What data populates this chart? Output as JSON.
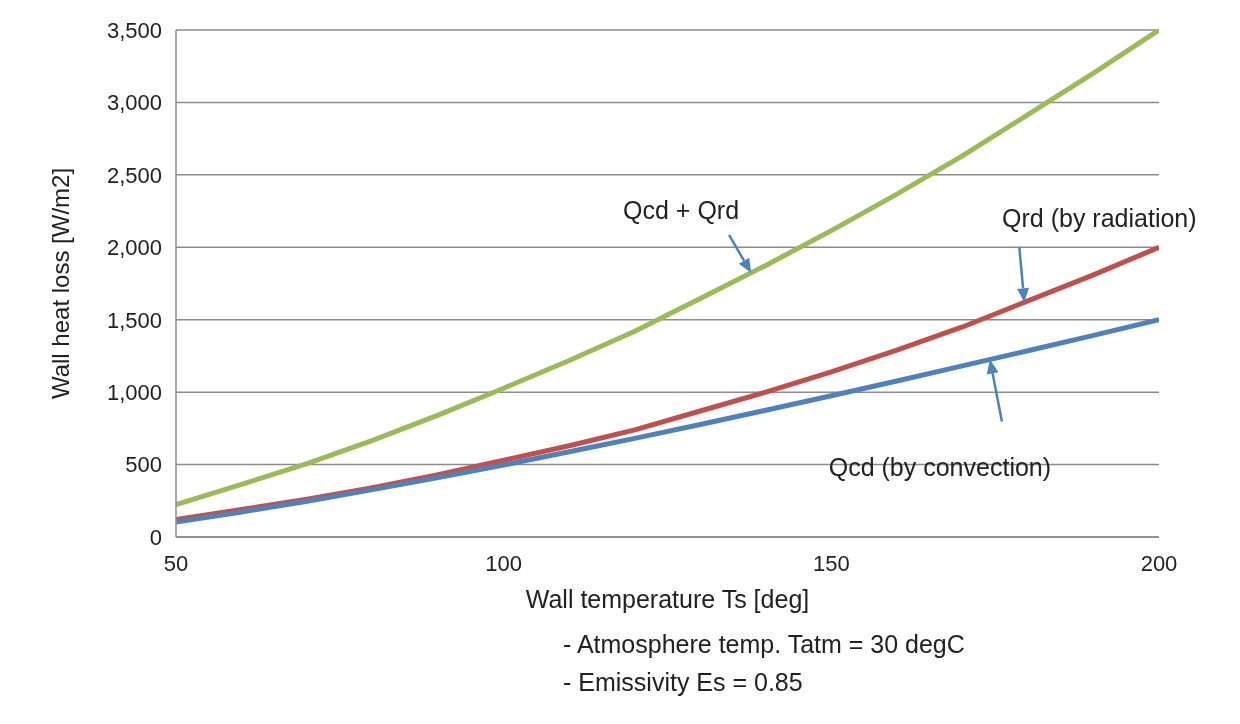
{
  "chart_data": {
    "type": "line",
    "xlabel": "Wall temperature Ts [deg]",
    "ylabel": "Wall heat loss [W/m2]",
    "x": [
      50,
      60,
      70,
      80,
      90,
      100,
      110,
      120,
      130,
      140,
      150,
      160,
      170,
      180,
      190,
      200
    ],
    "series": [
      {
        "name": "Qcd + Qrd",
        "color": "#9bbb59",
        "values": [
          224,
          363,
          507,
          667,
          841,
          1027,
          1218,
          1421,
          1647,
          1875,
          2115,
          2367,
          2631,
          2916,
          3202,
          3500
        ]
      },
      {
        "name": "Qrd (by radiation)",
        "color": "#c0504d",
        "values": [
          120,
          190,
          260,
          340,
          430,
          530,
          630,
          740,
          870,
          1000,
          1140,
          1290,
          1450,
          1630,
          1810,
          2000
        ]
      },
      {
        "name": "Qcd (by convection)",
        "color": "#4f81bd",
        "values": [
          104,
          173,
          247,
          327,
          411,
          497,
          588,
          681,
          777,
          875,
          975,
          1077,
          1181,
          1286,
          1392,
          1500
        ]
      }
    ],
    "xlim": [
      50,
      200
    ],
    "xticks": [
      50,
      100,
      150,
      200
    ],
    "ylim": [
      0,
      3500
    ],
    "yticks": [
      0,
      500,
      {
        "value": 1000,
        "label": "1,000"
      },
      {
        "value": 1500,
        "label": "1,500"
      },
      {
        "value": 2000,
        "label": "2,000"
      },
      {
        "value": 2500,
        "label": "2,500"
      },
      {
        "value": 3000,
        "label": "3,000"
      },
      {
        "value": 3500,
        "label": "3,500"
      }
    ],
    "grid": "y",
    "legend": false,
    "marker": "none",
    "line_style": "solid",
    "annotations": [
      "- Atmosphere temp. Tatm = 30 degC",
      "- Emissivity Es = 0.85"
    ]
  }
}
